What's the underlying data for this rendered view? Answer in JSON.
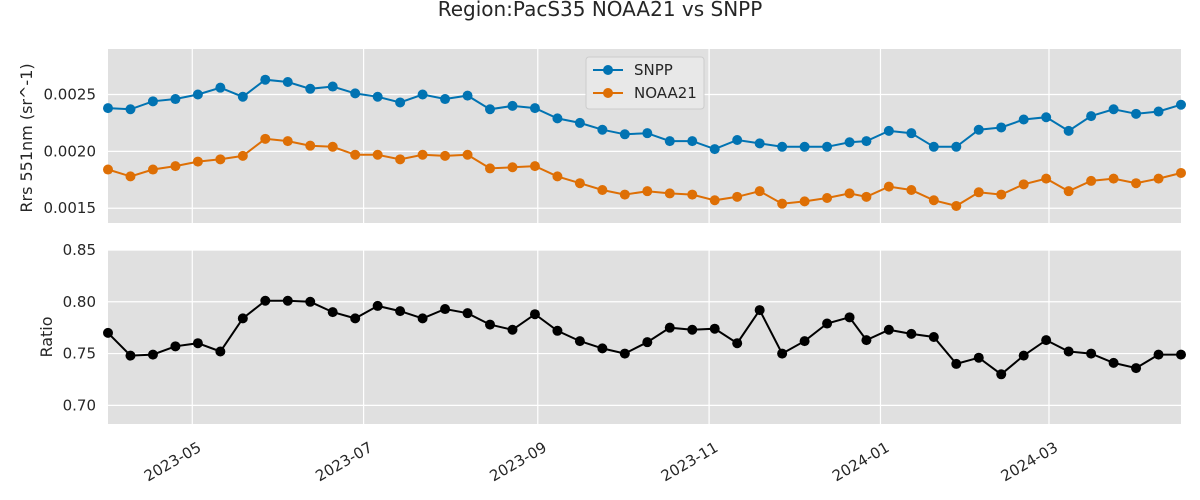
{
  "chart_data": {
    "type": "line",
    "title": "Region:PacS35 NOAA21 vs SNPP",
    "x": [
      "2023-04-01",
      "2023-04-09",
      "2023-04-17",
      "2023-04-25",
      "2023-05-03",
      "2023-05-11",
      "2023-05-19",
      "2023-05-27",
      "2023-06-04",
      "2023-06-12",
      "2023-06-20",
      "2023-06-28",
      "2023-07-06",
      "2023-07-14",
      "2023-07-22",
      "2023-07-30",
      "2023-08-07",
      "2023-08-15",
      "2023-08-23",
      "2023-08-31",
      "2023-09-08",
      "2023-09-16",
      "2023-09-24",
      "2023-10-02",
      "2023-10-10",
      "2023-10-18",
      "2023-10-26",
      "2023-11-03",
      "2023-11-11",
      "2023-11-19",
      "2023-11-27",
      "2023-12-05",
      "2023-12-13",
      "2023-12-21",
      "2023-12-27",
      "2024-01-04",
      "2024-01-12",
      "2024-01-20",
      "2024-01-28",
      "2024-02-05",
      "2024-02-13",
      "2024-02-21",
      "2024-02-29",
      "2024-03-08",
      "2024-03-16",
      "2024-03-24",
      "2024-04-01",
      "2024-04-09",
      "2024-04-17"
    ],
    "xlim": [
      "2023-04-01",
      "2024-04-17"
    ],
    "xticks": [
      "2023-05",
      "2023-07",
      "2023-09",
      "2023-11",
      "2024-01",
      "2024-03"
    ],
    "xtick_values": [
      "2023-05-01",
      "2023-07-01",
      "2023-09-01",
      "2023-11-01",
      "2024-01-01",
      "2024-03-01"
    ],
    "grid": true,
    "panels": [
      {
        "ylabel": "Rrs 551nm (sr^-1)",
        "ylim": [
          0.00137,
          0.0029
        ],
        "yticks": [
          "0.0015",
          "0.0020",
          "0.0025"
        ],
        "ytick_values": [
          0.0015,
          0.002,
          0.0025
        ],
        "legend": "upper-center",
        "series": [
          {
            "name": "SNPP",
            "color": "#0173b2",
            "values": [
              0.00238,
              0.00237,
              0.00244,
              0.00246,
              0.0025,
              0.00256,
              0.00248,
              0.00263,
              0.00261,
              0.00255,
              0.00257,
              0.00251,
              0.00248,
              0.00243,
              0.0025,
              0.00246,
              0.00249,
              0.00237,
              0.0024,
              0.00238,
              0.00229,
              0.00225,
              0.00219,
              0.00215,
              0.00216,
              0.00209,
              0.00209,
              0.00202,
              0.0021,
              0.00207,
              0.00204,
              0.00204,
              0.00204,
              0.00208,
              0.00209,
              0.00218,
              0.00216,
              0.00204,
              0.00204,
              0.00219,
              0.00221,
              0.00228,
              0.0023,
              0.00218,
              0.00231,
              0.00237,
              0.00233,
              0.00235,
              0.00241
            ]
          },
          {
            "name": "NOAA21",
            "color": "#de6f05",
            "values": [
              0.00184,
              0.00178,
              0.00184,
              0.00187,
              0.00191,
              0.00193,
              0.00196,
              0.00211,
              0.00209,
              0.00205,
              0.00204,
              0.00197,
              0.00197,
              0.00193,
              0.00197,
              0.00196,
              0.00197,
              0.00185,
              0.00186,
              0.00187,
              0.00178,
              0.00172,
              0.00166,
              0.00162,
              0.00165,
              0.00163,
              0.00162,
              0.00157,
              0.0016,
              0.00165,
              0.00154,
              0.00156,
              0.00159,
              0.00163,
              0.0016,
              0.00169,
              0.00166,
              0.00157,
              0.00152,
              0.00164,
              0.00162,
              0.00171,
              0.00176,
              0.00165,
              0.00174,
              0.00176,
              0.00172,
              0.00176,
              0.00181
            ]
          }
        ]
      },
      {
        "ylabel": "Ratio",
        "ylim": [
          0.682,
          0.85
        ],
        "yticks": [
          "0.70",
          "0.75",
          "0.80",
          "0.85"
        ],
        "ytick_values": [
          0.7,
          0.75,
          0.8,
          0.85
        ],
        "series": [
          {
            "name": "",
            "color": "#000000",
            "values": [
              0.77,
              0.748,
              0.749,
              0.757,
              0.76,
              0.752,
              0.784,
              0.801,
              0.801,
              0.8,
              0.79,
              0.784,
              0.796,
              0.791,
              0.784,
              0.793,
              0.789,
              0.778,
              0.773,
              0.788,
              0.772,
              0.762,
              0.755,
              0.75,
              0.761,
              0.775,
              0.773,
              0.774,
              0.76,
              0.792,
              0.75,
              0.762,
              0.779,
              0.785,
              0.763,
              0.773,
              0.769,
              0.766,
              0.74,
              0.746,
              0.73,
              0.748,
              0.763,
              0.752,
              0.75,
              0.741,
              0.736,
              0.749,
              0.749
            ]
          }
        ]
      }
    ]
  }
}
